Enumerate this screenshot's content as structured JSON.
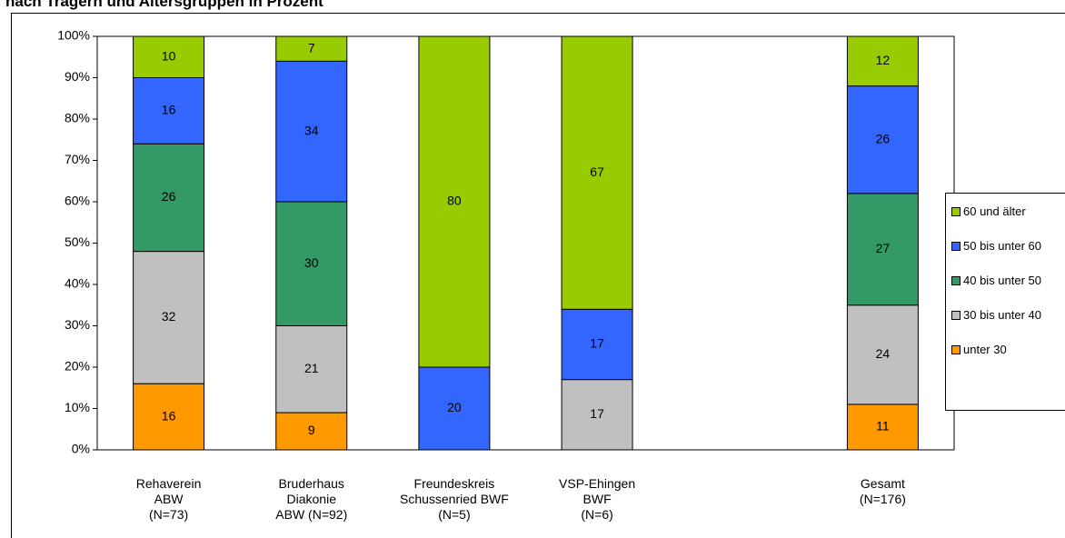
{
  "chart_data": {
    "type": "stacked_bar",
    "title": "nach Trägern und Altersgruppen in Prozent",
    "categories": [
      "Rehaverein\nABW\n(N=73)",
      "Bruderhaus\nDiakonie\nABW (N=92)",
      "Freundeskreis\nSchussenried BWF\n(N=5)",
      "VSP-Ehingen\nBWF\n(N=6)",
      null,
      "Gesamt\n(N=176)"
    ],
    "series": [
      {
        "name": "unter 30",
        "color": "#ff9900",
        "values": [
          16,
          9,
          null,
          null,
          null,
          11
        ]
      },
      {
        "name": "30 bis unter 40",
        "color": "#c0c0c0",
        "values": [
          32,
          21,
          null,
          17,
          null,
          24
        ]
      },
      {
        "name": "40 bis unter 50",
        "color": "#339966",
        "values": [
          26,
          30,
          null,
          null,
          null,
          27
        ]
      },
      {
        "name": "50 bis unter 60",
        "color": "#3366ff",
        "values": [
          16,
          34,
          20,
          17,
          null,
          26
        ]
      },
      {
        "name": "60 und älter",
        "color": "#99cc00",
        "values": [
          10,
          7,
          80,
          67,
          null,
          12
        ]
      }
    ],
    "ylim": [
      0,
      100
    ],
    "yticks": [
      {
        "value": 0,
        "label": "0%"
      },
      {
        "value": 10,
        "label": "10%"
      },
      {
        "value": 20,
        "label": "20%"
      },
      {
        "value": 30,
        "label": "30%"
      },
      {
        "value": 40,
        "label": "40%"
      },
      {
        "value": 50,
        "label": "50%"
      },
      {
        "value": 60,
        "label": "60%"
      },
      {
        "value": 70,
        "label": "70%"
      },
      {
        "value": 80,
        "label": "80%"
      },
      {
        "value": 90,
        "label": "90%"
      },
      {
        "value": 100,
        "label": "100%"
      }
    ],
    "legend": "right"
  }
}
